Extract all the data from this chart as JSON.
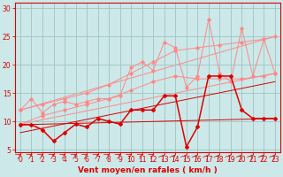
{
  "xlabel": "Vent moyen/en rafales ( km/h )",
  "xlim": [
    -0.5,
    23.5
  ],
  "ylim": [
    4.5,
    31
  ],
  "yticks": [
    5,
    10,
    15,
    20,
    25,
    30
  ],
  "xticks": [
    0,
    1,
    2,
    3,
    4,
    5,
    6,
    7,
    8,
    9,
    10,
    11,
    12,
    13,
    14,
    15,
    16,
    17,
    18,
    19,
    20,
    21,
    22,
    23
  ],
  "bg_color": "#cce8e8",
  "grid_color": "#a0c4c4",
  "lc_dark": "#dd0000",
  "lc_light": "#ff8888",
  "series_dark1": {
    "x": [
      0,
      1,
      2,
      3,
      4,
      5,
      6,
      7,
      8,
      9,
      10,
      11,
      12,
      13,
      14,
      15,
      16,
      17,
      18,
      19,
      20,
      21,
      22,
      23
    ],
    "y": [
      9.4,
      9.4,
      8.5,
      6.5,
      8.0,
      9.5,
      9.0,
      10.5,
      10.0,
      9.5,
      12.0,
      12.0,
      12.0,
      14.5,
      14.5,
      5.5,
      9.0,
      18.0,
      18.0,
      18.0,
      12.0,
      10.5,
      10.5,
      10.5
    ]
  },
  "series_dark2": {
    "x": [
      0,
      23
    ],
    "y": [
      9.4,
      10.5
    ]
  },
  "series_dark3": {
    "x": [
      0,
      23
    ],
    "y": [
      8.0,
      17.0
    ]
  },
  "series_light1": {
    "x": [
      0,
      1,
      2,
      3,
      4,
      5,
      6,
      7,
      8,
      9,
      10,
      11,
      12,
      13,
      14,
      15,
      16,
      17,
      18,
      19,
      20,
      21,
      22,
      23
    ],
    "y": [
      12.0,
      14.0,
      11.5,
      13.0,
      13.5,
      13.0,
      13.5,
      14.0,
      14.0,
      14.5,
      19.5,
      20.5,
      19.0,
      24.0,
      23.0,
      16.0,
      18.0,
      28.0,
      18.5,
      17.0,
      26.5,
      18.0,
      24.5,
      18.5
    ]
  },
  "series_light2": {
    "x": [
      0,
      2,
      4,
      6,
      8,
      10,
      12,
      14,
      16,
      18,
      20,
      22,
      23
    ],
    "y": [
      12.0,
      13.0,
      14.0,
      15.0,
      16.5,
      18.5,
      20.5,
      22.5,
      23.0,
      23.5,
      24.0,
      24.5,
      25.0
    ]
  },
  "series_light3": {
    "x": [
      0,
      2,
      4,
      6,
      8,
      10,
      12,
      14,
      16,
      18,
      20,
      22,
      23
    ],
    "y": [
      9.5,
      11.0,
      12.0,
      13.0,
      14.0,
      15.5,
      17.0,
      18.0,
      17.5,
      17.5,
      17.5,
      18.0,
      18.5
    ]
  },
  "series_light4": {
    "x": [
      0,
      23
    ],
    "y": [
      12.0,
      25.0
    ]
  },
  "series_light5": {
    "x": [
      0,
      23
    ],
    "y": [
      9.5,
      18.5
    ]
  }
}
